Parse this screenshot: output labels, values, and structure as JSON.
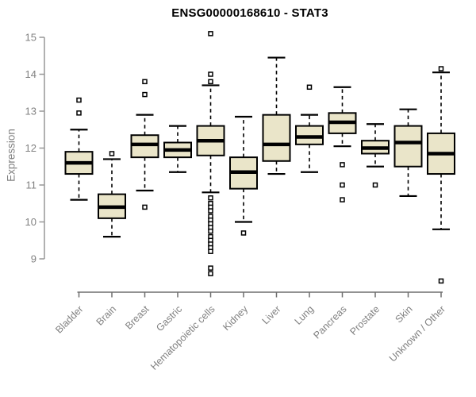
{
  "chart_data": {
    "type": "boxplot",
    "title": "ENSG00000168610 - STAT3",
    "xlabel": "",
    "ylabel": "Expression",
    "ylim": [
      8.4,
      15.3
    ],
    "yticks": [
      9,
      10,
      11,
      12,
      13,
      14,
      15
    ],
    "grid": false,
    "legend": false,
    "categories": [
      "Bladder",
      "Brain",
      "Breast",
      "Gastric",
      "Hematopoietic cells",
      "Kidney",
      "Liver",
      "Lung",
      "Pancreas",
      "Prostate",
      "Skin",
      "Unknown / Other"
    ],
    "boxes": [
      {
        "label": "Bladder",
        "whisker_low": 10.6,
        "q1": 11.3,
        "median": 11.6,
        "q3": 11.9,
        "whisker_high": 12.5,
        "outliers": [
          13.3,
          12.95
        ]
      },
      {
        "label": "Brain",
        "whisker_low": 9.6,
        "q1": 10.1,
        "median": 10.4,
        "q3": 10.75,
        "whisker_high": 11.7,
        "outliers": [
          11.85
        ]
      },
      {
        "label": "Breast",
        "whisker_low": 10.85,
        "q1": 11.75,
        "median": 12.1,
        "q3": 12.35,
        "whisker_high": 12.9,
        "outliers": [
          13.8,
          13.45,
          10.4
        ]
      },
      {
        "label": "Gastric",
        "whisker_low": 11.35,
        "q1": 11.75,
        "median": 11.95,
        "q3": 12.15,
        "whisker_high": 12.6,
        "outliers": []
      },
      {
        "label": "Hematopoietic cells",
        "whisker_low": 10.8,
        "q1": 11.8,
        "median": 12.2,
        "q3": 12.6,
        "whisker_high": 13.7,
        "outliers": [
          15.1,
          14.0,
          13.8,
          10.65,
          10.5,
          10.4,
          10.3,
          10.15,
          10.05,
          9.95,
          9.85,
          9.75,
          9.6,
          9.5,
          9.4,
          9.3,
          9.2,
          8.75,
          8.6
        ]
      },
      {
        "label": "Kidney",
        "whisker_low": 10.0,
        "q1": 10.9,
        "median": 11.35,
        "q3": 11.75,
        "whisker_high": 12.85,
        "outliers": [
          9.7
        ]
      },
      {
        "label": "Liver",
        "whisker_low": 11.3,
        "q1": 11.65,
        "median": 12.1,
        "q3": 12.9,
        "whisker_high": 14.45,
        "outliers": []
      },
      {
        "label": "Lung",
        "whisker_low": 11.35,
        "q1": 12.1,
        "median": 12.3,
        "q3": 12.6,
        "whisker_high": 12.9,
        "outliers": [
          13.65
        ]
      },
      {
        "label": "Pancreas",
        "whisker_low": 12.05,
        "q1": 12.4,
        "median": 12.7,
        "q3": 12.95,
        "whisker_high": 13.65,
        "outliers": [
          11.55,
          11.0,
          10.6
        ]
      },
      {
        "label": "Prostate",
        "whisker_low": 11.5,
        "q1": 11.85,
        "median": 12.0,
        "q3": 12.2,
        "whisker_high": 12.65,
        "outliers": [
          11.0
        ]
      },
      {
        "label": "Skin",
        "whisker_low": 10.7,
        "q1": 11.5,
        "median": 12.15,
        "q3": 12.6,
        "whisker_high": 13.05,
        "outliers": []
      },
      {
        "label": "Unknown / Other",
        "whisker_low": 9.8,
        "q1": 11.3,
        "median": 11.85,
        "q3": 12.4,
        "whisker_high": 14.05,
        "outliers": [
          14.15,
          8.4
        ]
      }
    ],
    "colors": {
      "box_fill": "#EAE5C9",
      "box_border": "#000000",
      "median": "#000000",
      "whisker": "#000000",
      "outlier_border": "#000000",
      "outlier_fill": "#ffffff",
      "y_axis": "#979797",
      "x_axis": "#6e6e6e",
      "tick_label": "#818181",
      "title": "#000000",
      "background": "#ffffff"
    }
  }
}
